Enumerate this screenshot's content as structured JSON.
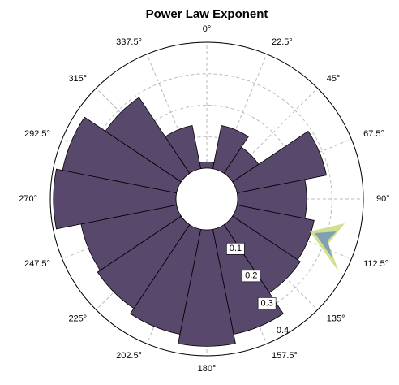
{
  "chart_data": {
    "type": "polar_bar",
    "title": "Power Law Exponent",
    "thetaticks": [
      {
        "value": 0,
        "label": "0°"
      },
      {
        "value": 22.5,
        "label": "22.5°"
      },
      {
        "value": 45,
        "label": "45°"
      },
      {
        "value": 67.5,
        "label": "67.5°"
      },
      {
        "value": 90,
        "label": "90°"
      },
      {
        "value": 112.5,
        "label": "112.5°"
      },
      {
        "value": 135,
        "label": "135°"
      },
      {
        "value": 157.5,
        "label": "157.5°"
      },
      {
        "value": 180,
        "label": "180°"
      },
      {
        "value": 202.5,
        "label": "202.5°"
      },
      {
        "value": 225,
        "label": "225°"
      },
      {
        "value": 247.5,
        "label": "247.5°"
      },
      {
        "value": 270,
        "label": "270°"
      },
      {
        "value": 292.5,
        "label": "292.5°"
      },
      {
        "value": 315,
        "label": "315°"
      },
      {
        "value": 337.5,
        "label": "337.5°"
      }
    ],
    "angles": [
      0,
      22.5,
      45,
      67.5,
      90,
      112.5,
      135,
      157.5,
      180,
      202.5,
      225,
      247.5,
      270,
      292.5,
      315,
      337.5
    ],
    "values": [
      0.02,
      0.14,
      0.1,
      0.29,
      0.22,
      0.25,
      0.26,
      0.34,
      0.37,
      0.34,
      0.32,
      0.31,
      0.39,
      0.37,
      0.29,
      0.14
    ],
    "color": "#58486b",
    "rlim": [
      0,
      0.4
    ],
    "rticks": [
      0.1,
      0.2,
      0.3,
      0.4
    ],
    "grid": true
  }
}
